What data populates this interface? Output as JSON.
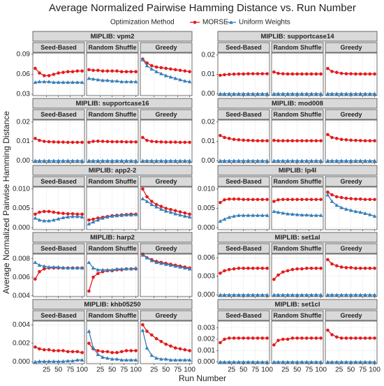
{
  "chart_data": {
    "type": "line",
    "title": "Average Normalized Pairwise Hamming Distance vs. Run Number",
    "legend_title": "Optimization Method",
    "xlabel": "Run Number",
    "ylabel": "Average Normalized Pairwise Hamming Distance",
    "facets": [
      "Seed-Based",
      "Random Shuffle",
      "Greedy"
    ],
    "series": [
      {
        "name": "MORSE",
        "color": "#e41a1c"
      },
      {
        "name": "Uniform Weights",
        "color": "#377eb8"
      }
    ],
    "grid": true,
    "x": [
      1,
      10,
      20,
      30,
      40,
      50,
      60,
      70,
      80,
      90,
      100
    ],
    "xlim": [
      -4,
      105
    ],
    "xticks": [
      25,
      50,
      75,
      100
    ],
    "panels": [
      {
        "title": "MIPLIB: vpm2",
        "ylim": [
          0.028,
          0.092
        ],
        "yticks": [
          0.03,
          0.06,
          0.09
        ],
        "values": [
          [
            [
              0.069,
              0.062,
              0.058,
              0.058,
              0.06,
              0.062,
              0.063,
              0.064,
              0.064,
              0.065,
              0.065
            ],
            [
              0.048,
              0.049,
              0.049,
              0.049,
              0.048,
              0.048,
              0.048,
              0.048,
              0.048,
              0.048,
              0.048
            ]
          ],
          [
            [
              0.067,
              0.066,
              0.066,
              0.065,
              0.065,
              0.065,
              0.065,
              0.064,
              0.064,
              0.064,
              0.064
            ],
            [
              0.054,
              0.053,
              0.052,
              0.051,
              0.051,
              0.05,
              0.05,
              0.049,
              0.049,
              0.049,
              0.049
            ]
          ],
          [
            [
              0.083,
              0.077,
              0.073,
              0.071,
              0.07,
              0.069,
              0.068,
              0.067,
              0.066,
              0.065,
              0.064
            ],
            [
              0.082,
              0.073,
              0.068,
              0.064,
              0.061,
              0.058,
              0.056,
              0.054,
              0.052,
              0.05,
              0.049
            ]
          ]
        ]
      },
      {
        "title": "MIPLIB: supportcase14",
        "ylim": [
          -0.001,
          0.021
        ],
        "yticks": [
          {
            "value": 0,
            "label": "0.00"
          },
          0.01,
          0.02
        ],
        "values": [
          [
            [
              0.0095,
              0.0098,
              0.01,
              0.0101,
              0.0102,
              0.0102,
              0.0103,
              0.0103,
              0.0103,
              0.0103,
              0.0103
            ],
            [
              0,
              0,
              0,
              0,
              0,
              0,
              0,
              0,
              0,
              0,
              0
            ]
          ],
          [
            [
              0.0112,
              0.0105,
              0.0103,
              0.0102,
              0.0102,
              0.0102,
              0.0102,
              0.0102,
              0.0102,
              0.0102,
              0.0102
            ],
            [
              0,
              0,
              0,
              0,
              0,
              0,
              0,
              0,
              0,
              0,
              0
            ]
          ],
          [
            [
              0.013,
              0.0115,
              0.011,
              0.0105,
              0.0103,
              0.0103,
              0.0102,
              0.0102,
              0.0102,
              0.0102,
              0.0102
            ],
            [
              0,
              0,
              0,
              0,
              0,
              0,
              0,
              0,
              0,
              0,
              0
            ]
          ]
        ]
      },
      {
        "title": "MIPLIB: supportcase16",
        "ylim": [
          -0.001,
          0.021
        ],
        "yticks": [
          {
            "value": 0,
            "label": "0.00"
          },
          0.01,
          0.02
        ],
        "values": [
          [
            [
              0.0115,
              0.0105,
              0.01,
              0.0098,
              0.0097,
              0.0096,
              0.0096,
              0.0095,
              0.0095,
              0.0095,
              0.0095
            ],
            [
              0,
              0,
              0,
              0,
              0,
              0,
              0,
              0,
              0,
              0,
              0
            ]
          ],
          [
            [
              0.0095,
              0.01,
              0.0101,
              0.01,
              0.0099,
              0.0098,
              0.0098,
              0.0098,
              0.0097,
              0.0097,
              0.0097
            ],
            [
              0,
              0,
              0,
              0,
              0,
              0,
              0,
              0,
              0,
              0,
              0
            ]
          ],
          [
            [
              0.012,
              0.0105,
              0.01,
              0.0098,
              0.0097,
              0.0096,
              0.0096,
              0.0096,
              0.0095,
              0.0095,
              0.0095
            ],
            [
              0,
              0,
              0,
              0,
              0,
              0,
              0,
              0,
              0,
              0,
              0
            ]
          ]
        ]
      },
      {
        "title": "MIPLIB: mod008",
        "ylim": [
          -0.001,
          0.021
        ],
        "yticks": [
          {
            "value": 0,
            "label": "0.00"
          },
          0.01,
          0.02
        ],
        "values": [
          [
            [
              0.013,
              0.012,
              0.0115,
              0.011,
              0.0108,
              0.0106,
              0.0105,
              0.0104,
              0.0103,
              0.0103,
              0.0103
            ],
            [
              0,
              0,
              0,
              0,
              0,
              0,
              0,
              0,
              0,
              0,
              0
            ]
          ],
          [
            [
              0.0105,
              0.0103,
              0.0103,
              0.0103,
              0.0103,
              0.0103,
              0.0103,
              0.0103,
              0.0103,
              0.0103,
              0.0103
            ],
            [
              0,
              0,
              0,
              0,
              0,
              0,
              0,
              0,
              0,
              0,
              0
            ]
          ],
          [
            [
              0.0135,
              0.012,
              0.0115,
              0.011,
              0.0108,
              0.0106,
              0.0105,
              0.0104,
              0.0103,
              0.0103,
              0.0103
            ],
            [
              0,
              0,
              0,
              0,
              0,
              0,
              0,
              0,
              0,
              0,
              0
            ]
          ]
        ]
      },
      {
        "title": "MIPLIB: app2-2",
        "ylim": [
          -0.0005,
          0.0105
        ],
        "yticks": [
          {
            "value": 0,
            "label": "0.000"
          },
          0.005,
          {
            "value": 0.01,
            "label": "0.010"
          }
        ],
        "values": [
          [
            [
              0.0035,
              0.004,
              0.0042,
              0.0042,
              0.004,
              0.0038,
              0.0037,
              0.0036,
              0.0036,
              0.0035,
              0.0035
            ],
            [
              0.0025,
              0.002,
              0.0018,
              0.0018,
              0.002,
              0.0023,
              0.0026,
              0.0028,
              0.0029,
              0.0029,
              0.0028
            ]
          ],
          [
            [
              0.002,
              0.0022,
              0.0025,
              0.0027,
              0.0029,
              0.0031,
              0.0032,
              0.0033,
              0.0034,
              0.0035,
              0.0035
            ],
            [
              0.001,
              0.0015,
              0.002,
              0.0025,
              0.0028,
              0.003,
              0.0031,
              0.0032,
              0.0033,
              0.0033,
              0.0034
            ]
          ],
          [
            [
              0.01,
              0.008,
              0.0068,
              0.006,
              0.0055,
              0.005,
              0.0047,
              0.0044,
              0.0041,
              0.0038,
              0.0035
            ],
            [
              0.0075,
              0.0068,
              0.006,
              0.0054,
              0.0048,
              0.0043,
              0.004,
              0.0036,
              0.0033,
              0.003,
              0.0028
            ]
          ]
        ]
      },
      {
        "title": "MIPLIB: lp4l",
        "ylim": [
          -0.0005,
          0.0105
        ],
        "yticks": [
          {
            "value": 0,
            "label": "0.000"
          },
          0.005,
          {
            "value": 0.01,
            "label": "0.010"
          }
        ],
        "values": [
          [
            [
              0.0065,
              0.0072,
              0.0074,
              0.0074,
              0.0074,
              0.0073,
              0.0073,
              0.0073,
              0.0073,
              0.0073,
              0.0073
            ],
            [
              0.0017,
              0.0022,
              0.0027,
              0.003,
              0.0032,
              0.0032,
              0.0032,
              0.0032,
              0.0032,
              0.0032,
              0.0032
            ]
          ],
          [
            [
              0.0068,
              0.0072,
              0.0073,
              0.0073,
              0.0073,
              0.0073,
              0.0073,
              0.0073,
              0.0073,
              0.0073,
              0.0073
            ],
            [
              0.0042,
              0.004,
              0.0038,
              0.0036,
              0.0035,
              0.0034,
              0.0033,
              0.0033,
              0.0032,
              0.0032,
              0.0032
            ]
          ],
          [
            [
              0.0092,
              0.0085,
              0.008,
              0.0078,
              0.0076,
              0.0075,
              0.0074,
              0.0074,
              0.0073,
              0.0073,
              0.0073
            ],
            [
              0.0085,
              0.0068,
              0.0058,
              0.0052,
              0.0048,
              0.0045,
              0.0042,
              0.004,
              0.0037,
              0.0034,
              0.003
            ]
          ]
        ]
      },
      {
        "title": "MIPLIB: harp2",
        "ylim": [
          0.0039,
          0.0085
        ],
        "yticks": [
          0.004,
          0.006,
          0.008
        ],
        "values": [
          [
            [
              0.0058,
              0.0066,
              0.0069,
              0.007,
              0.007,
              0.007,
              0.007,
              0.007,
              0.007,
              0.007,
              0.007
            ],
            [
              0.0076,
              0.0073,
              0.0072,
              0.0071,
              0.0071,
              0.0071,
              0.007,
              0.007,
              0.007,
              0.007,
              0.007
            ]
          ],
          [
            [
              0.0045,
              0.006,
              0.0064,
              0.0066,
              0.0067,
              0.0067,
              0.0068,
              0.0068,
              0.0069,
              0.0069,
              0.0069
            ],
            [
              0.0076,
              0.007,
              0.0068,
              0.0068,
              0.0068,
              0.0068,
              0.0069,
              0.0069,
              0.0069,
              0.0069,
              0.007
            ]
          ],
          [
            [
              0.0085,
              0.0081,
              0.0079,
              0.0077,
              0.0076,
              0.0075,
              0.0074,
              0.0073,
              0.0072,
              0.0071,
              0.007
            ],
            [
              0.0084,
              0.0081,
              0.0078,
              0.0076,
              0.0075,
              0.0074,
              0.0073,
              0.0072,
              0.0071,
              0.007,
              0.0069
            ]
          ]
        ]
      },
      {
        "title": "MIPLIB: set1al",
        "ylim": [
          -0.0003,
          0.0066
        ],
        "yticks": [
          {
            "value": 0,
            "label": "0.000"
          },
          0.003,
          0.006
        ],
        "values": [
          [
            [
              0.0035,
              0.0039,
              0.0041,
              0.0042,
              0.0043,
              0.0043,
              0.0043,
              0.0043,
              0.0043,
              0.0043,
              0.0043
            ],
            [
              0,
              0,
              0,
              0,
              0,
              0,
              0,
              0,
              0,
              0,
              0
            ]
          ],
          [
            [
              0.0025,
              0.0032,
              0.0037,
              0.0039,
              0.0041,
              0.0042,
              0.0042,
              0.0043,
              0.0043,
              0.0043,
              0.0043
            ],
            [
              0,
              0,
              0,
              0,
              0,
              0,
              0,
              0,
              0,
              0,
              0
            ]
          ],
          [
            [
              0.0057,
              0.005,
              0.0047,
              0.0045,
              0.0044,
              0.0044,
              0.0043,
              0.0043,
              0.0043,
              0.0043,
              0.0043
            ],
            [
              0,
              0,
              0,
              0,
              0,
              0,
              0,
              0,
              0,
              0,
              0
            ]
          ]
        ]
      },
      {
        "title": "MIPLIB: khb05250",
        "ylim": [
          -0.0002,
          0.0044
        ],
        "yticks": [
          {
            "value": 0,
            "label": "0.000"
          },
          0.002,
          0.004
        ],
        "values": [
          [
            [
              0.0016,
              0.0014,
              0.0013,
              0.0013,
              0.0012,
              0.0012,
              0.0012,
              0.0011,
              0.0011,
              0.0011,
              0.001
            ],
            [
              0.0,
              5e-05,
              5e-05,
              5e-05,
              5e-05,
              5e-05,
              5e-05,
              0.0001,
              0.0001,
              0.0002,
              0.0002
            ]
          ],
          [
            [
              0.002,
              0.0014,
              0.0012,
              0.0011,
              0.0011,
              0.001,
              0.001,
              0.0011,
              0.0012,
              0.0012,
              0.0012
            ],
            [
              0.0033,
              0.0015,
              0.0008,
              0.0005,
              0.0004,
              0.0003,
              0.0003,
              0.0002,
              0.0002,
              0.0002,
              0.0002
            ]
          ],
          [
            [
              0.004,
              0.0033,
              0.0029,
              0.0025,
              0.0022,
              0.0019,
              0.0017,
              0.0015,
              0.0014,
              0.0013,
              0.0012
            ],
            [
              0.0034,
              0.0015,
              0.0007,
              0.0004,
              0.0003,
              0.0003,
              0.0002,
              0.0002,
              0.0002,
              0.0002,
              0.0002
            ]
          ]
        ]
      },
      {
        "title": "MIPLIB: set1cl",
        "ylim": [
          -0.00015,
          0.0036
        ],
        "yticks": [
          {
            "value": 0,
            "label": "0.000"
          },
          0.001,
          0.002,
          0.003
        ],
        "values": [
          [
            [
              0.0017,
              0.002,
              0.0021,
              0.0021,
              0.0021,
              0.0021,
              0.0021,
              0.0021,
              0.0021,
              0.0021,
              0.0021
            ],
            [
              0,
              0,
              0,
              0,
              0,
              0,
              0,
              0,
              0,
              0,
              0
            ]
          ],
          [
            [
              0.0015,
              0.0019,
              0.002,
              0.002,
              0.0021,
              0.0021,
              0.0021,
              0.0021,
              0.0021,
              0.0021,
              0.0021
            ],
            [
              0,
              0,
              0,
              0,
              0,
              0,
              0,
              0,
              0,
              0,
              0
            ]
          ],
          [
            [
              0.0028,
              0.0024,
              0.0022,
              0.0021,
              0.0021,
              0.0021,
              0.0021,
              0.0021,
              0.0021,
              0.0021,
              0.0021
            ],
            [
              0,
              0,
              0,
              0,
              0,
              0,
              0,
              0,
              0,
              0,
              0
            ]
          ]
        ]
      }
    ]
  }
}
